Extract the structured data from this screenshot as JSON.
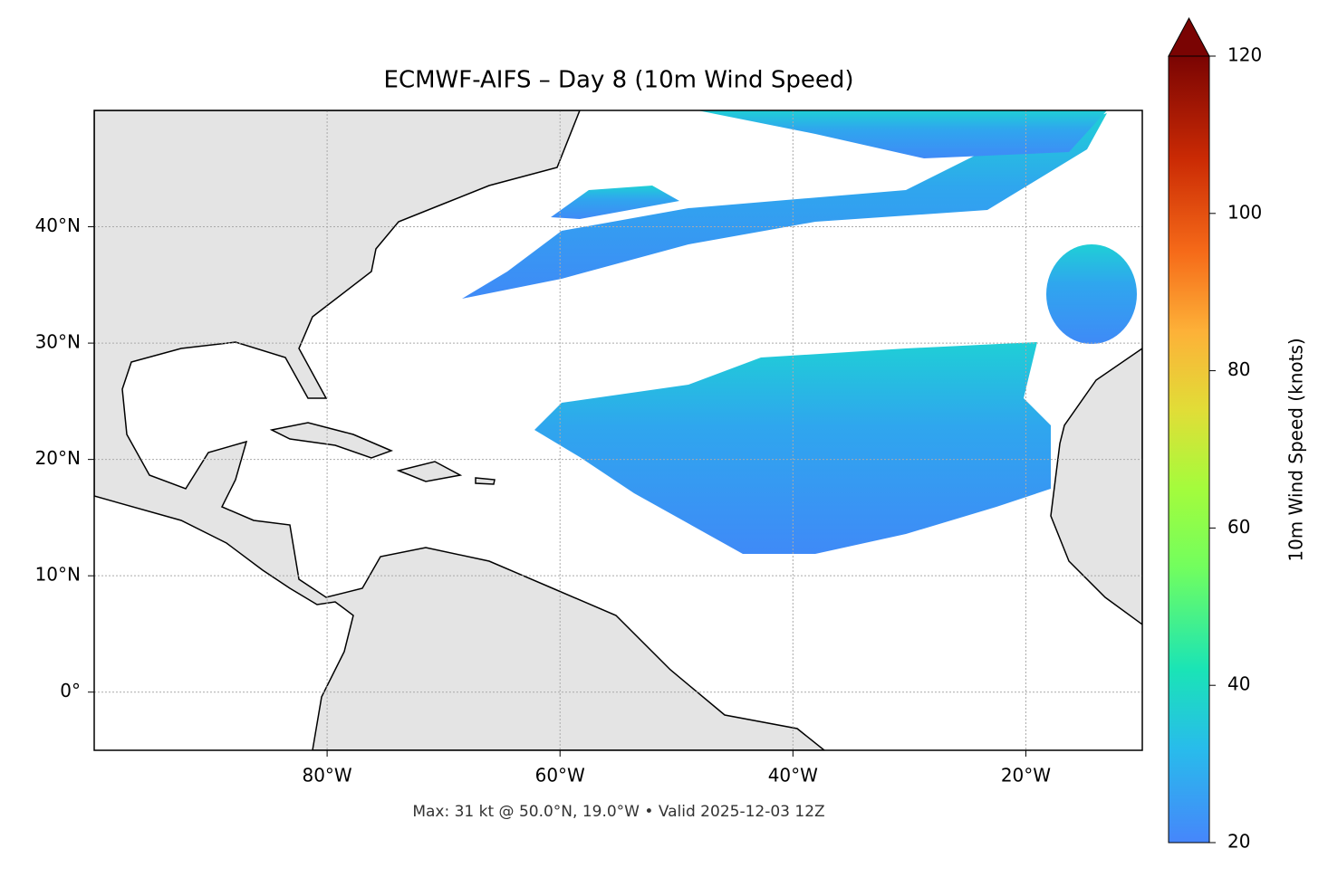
{
  "chart_data": {
    "type": "map",
    "title": "ECMWF-AIFS – Day 8 (10m Wind Speed)",
    "annotation": "Max: 31 kt @ 50.0°N, 19.0°W • Valid 2025-12-03 12Z",
    "xlim": [
      -100,
      -10
    ],
    "ylim": [
      -5,
      50
    ],
    "xticks": [
      {
        "value": -80,
        "label": "80°W"
      },
      {
        "value": -60,
        "label": "60°W"
      },
      {
        "value": -40,
        "label": "40°W"
      },
      {
        "value": -20,
        "label": "20°W"
      }
    ],
    "yticks": [
      {
        "value": 0,
        "label": "0°"
      },
      {
        "value": 10,
        "label": "10°N"
      },
      {
        "value": 20,
        "label": "20°N"
      },
      {
        "value": 30,
        "label": "30°N"
      },
      {
        "value": 40,
        "label": "40°N"
      }
    ],
    "grid": true,
    "colorbar": {
      "label": "10m Wind Speed (knots)",
      "lim": [
        20,
        120
      ],
      "ticks": [
        20,
        40,
        60,
        80,
        100,
        120
      ]
    }
  }
}
